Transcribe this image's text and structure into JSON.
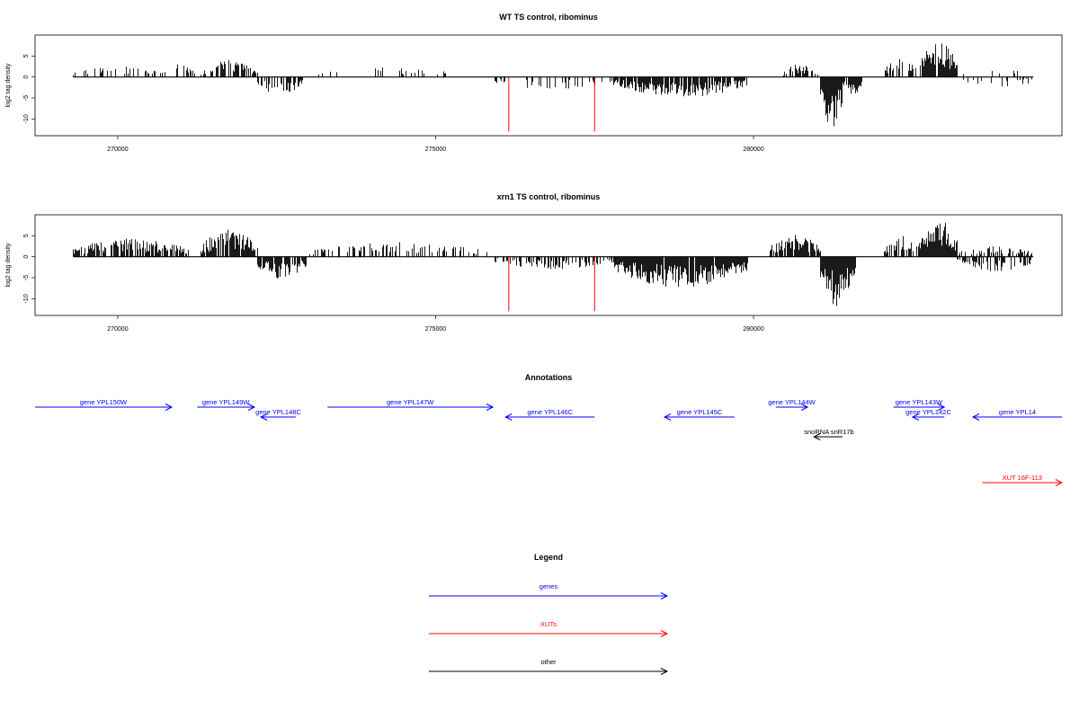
{
  "colors": {
    "genes": "#0000ff",
    "xuts": "#ff0000",
    "other": "#000000",
    "bars": "#000000",
    "highlight": "#ff0000"
  },
  "chart_data": [
    {
      "type": "bar",
      "title": "WT TS control, ribominus",
      "xlabel": "",
      "ylabel": "log2 tag density",
      "xlim": [
        268700,
        284850
      ],
      "ylim": [
        -14,
        10
      ],
      "yticks": [
        5,
        0,
        -5,
        -10
      ],
      "xticks": [
        270000,
        275000,
        280000
      ],
      "xtick_labels": [
        "270000",
        "275000",
        "280000"
      ],
      "highlighted_positions": [
        276150,
        277500
      ],
      "highlight_value": -13,
      "bar_regions": [
        {
          "start": 269300,
          "end": 270700,
          "strand": "plus",
          "max": 2.6,
          "density": 0.22,
          "seed": 11
        },
        {
          "start": 270700,
          "end": 271200,
          "strand": "plus",
          "max": 3.2,
          "density": 0.35,
          "seed": 12
        },
        {
          "start": 271300,
          "end": 272200,
          "strand": "plus",
          "max": 4.1,
          "density": 0.5,
          "seed": 13
        },
        {
          "start": 272200,
          "end": 272900,
          "strand": "minus",
          "max": 4.5,
          "density": 0.5,
          "seed": 14
        },
        {
          "start": 273000,
          "end": 275300,
          "strand": "plus",
          "max": 2.3,
          "density": 0.1,
          "seed": 15
        },
        {
          "start": 275900,
          "end": 277800,
          "strand": "minus",
          "max": 3.0,
          "density": 0.32,
          "seed": 16
        },
        {
          "start": 277800,
          "end": 279900,
          "strand": "minus",
          "max": 5.0,
          "density": 0.75,
          "seed": 17
        },
        {
          "start": 280450,
          "end": 281000,
          "strand": "plus",
          "max": 3.2,
          "density": 0.55,
          "seed": 18
        },
        {
          "start": 281050,
          "end": 281400,
          "strand": "minus",
          "max": 12.5,
          "density": 0.95,
          "seed": 19
        },
        {
          "start": 281400,
          "end": 281700,
          "strand": "minus",
          "max": 4.5,
          "density": 0.6,
          "seed": 20
        },
        {
          "start": 282050,
          "end": 282600,
          "strand": "plus",
          "max": 4.5,
          "density": 0.55,
          "seed": 21
        },
        {
          "start": 282600,
          "end": 283200,
          "strand": "plus",
          "max": 8.5,
          "density": 0.95,
          "seed": 22
        },
        {
          "start": 283300,
          "end": 284400,
          "strand": "minus",
          "max": 2.8,
          "density": 0.25,
          "seed": 23
        },
        {
          "start": 283300,
          "end": 284400,
          "strand": "plus",
          "max": 1.8,
          "density": 0.15,
          "seed": 24
        }
      ]
    },
    {
      "type": "bar",
      "title": "xrn1 TS control, ribominus",
      "xlabel": "",
      "ylabel": "log2 tag density",
      "xlim": [
        268700,
        284850
      ],
      "ylim": [
        -14,
        10
      ],
      "yticks": [
        5,
        0,
        -5,
        -10
      ],
      "xticks": [
        270000,
        275000,
        280000
      ],
      "xtick_labels": [
        "270000",
        "275000",
        "280000"
      ],
      "highlighted_positions": [
        276150,
        277500
      ],
      "highlight_value": -13,
      "bar_regions": [
        {
          "start": 269300,
          "end": 271100,
          "strand": "plus",
          "max": 4.5,
          "density": 0.7,
          "seed": 31
        },
        {
          "start": 271300,
          "end": 272200,
          "strand": "plus",
          "max": 6.5,
          "density": 0.95,
          "seed": 32
        },
        {
          "start": 272200,
          "end": 272950,
          "strand": "minus",
          "max": 5.5,
          "density": 0.85,
          "seed": 33
        },
        {
          "start": 273000,
          "end": 275800,
          "strand": "plus",
          "max": 3.5,
          "density": 0.35,
          "seed": 34
        },
        {
          "start": 275900,
          "end": 277800,
          "strand": "minus",
          "max": 3.0,
          "density": 0.4,
          "seed": 35
        },
        {
          "start": 277800,
          "end": 279900,
          "strand": "minus",
          "max": 7.5,
          "density": 0.95,
          "seed": 36
        },
        {
          "start": 280250,
          "end": 281050,
          "strand": "plus",
          "max": 5.5,
          "density": 0.85,
          "seed": 37
        },
        {
          "start": 281050,
          "end": 281600,
          "strand": "minus",
          "max": 12.0,
          "density": 0.95,
          "seed": 38
        },
        {
          "start": 282050,
          "end": 282600,
          "strand": "plus",
          "max": 5.5,
          "density": 0.6,
          "seed": 39
        },
        {
          "start": 282600,
          "end": 283200,
          "strand": "plus",
          "max": 9.0,
          "density": 0.95,
          "seed": 40
        },
        {
          "start": 283200,
          "end": 284400,
          "strand": "minus",
          "max": 3.5,
          "density": 0.45,
          "seed": 41
        },
        {
          "start": 283200,
          "end": 284400,
          "strand": "plus",
          "max": 2.5,
          "density": 0.4,
          "seed": 42
        }
      ]
    }
  ],
  "annotations": {
    "title": "Annotations",
    "features": [
      {
        "label": "gene YPL150W",
        "type": "genes",
        "strand": "+",
        "start": 268700,
        "end": 270850,
        "row": 0
      },
      {
        "label": "gene YPL149W",
        "type": "genes",
        "strand": "+",
        "start": 271250,
        "end": 272150,
        "row": 0
      },
      {
        "label": "gene YPL148C",
        "type": "genes",
        "strand": "-",
        "start": 272250,
        "end": 272800,
        "row": 1
      },
      {
        "label": "gene YPL147W",
        "type": "genes",
        "strand": "+",
        "start": 273300,
        "end": 275900,
        "row": 0
      },
      {
        "label": "gene YPL146C",
        "type": "genes",
        "strand": "-",
        "start": 276100,
        "end": 277500,
        "row": 1
      },
      {
        "label": "gene YPL145C",
        "type": "genes",
        "strand": "-",
        "start": 278600,
        "end": 279700,
        "row": 1
      },
      {
        "label": "gene YPL144W",
        "type": "genes",
        "strand": "+",
        "start": 280350,
        "end": 280850,
        "row": 0
      },
      {
        "label": "gene YPL143W",
        "type": "genes",
        "strand": "+",
        "start": 282200,
        "end": 283000,
        "row": 0
      },
      {
        "label": "gene YPL142C",
        "type": "genes",
        "strand": "-",
        "start": 282500,
        "end": 283000,
        "row": 1
      },
      {
        "label": "gene YPL14",
        "type": "genes",
        "strand": "-",
        "start": 283450,
        "end": 284850,
        "row": 1
      },
      {
        "label": "snoRNA snR17b",
        "type": "other",
        "strand": "-",
        "start": 280950,
        "end": 281400,
        "row": 2
      },
      {
        "label": "XUT 16F-113",
        "type": "xuts",
        "strand": "+",
        "start": 283600,
        "end": 284850,
        "row": 3
      }
    ]
  },
  "legend": {
    "title": "Legend",
    "items": [
      {
        "label": "genes",
        "type": "genes"
      },
      {
        "label": "XUTs",
        "type": "xuts"
      },
      {
        "label": "other",
        "type": "other"
      }
    ]
  }
}
